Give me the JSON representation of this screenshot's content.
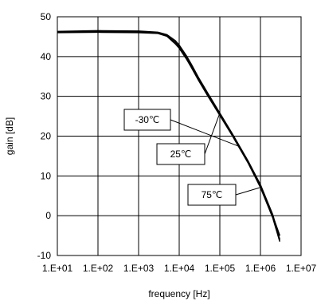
{
  "chart_data": {
    "type": "line",
    "xlabel": "frequency [Hz]",
    "ylabel": "gain [dB]",
    "xscale": "log",
    "xlim": [
      10,
      10000000
    ],
    "ylim": [
      -10,
      50
    ],
    "grid": true,
    "x_tick_labels": [
      "1.E+01",
      "1.E+02",
      "1.E+03",
      "1.E+04",
      "1.E+05",
      "1.E+06",
      "1.E+07"
    ],
    "y_tick_labels": [
      "-10",
      "0",
      "10",
      "20",
      "30",
      "40",
      "50"
    ],
    "series": [
      {
        "name": "-30℃",
        "x": [
          10,
          100,
          1000,
          3000,
          5000,
          8000,
          10000,
          15000,
          20000,
          30000,
          50000,
          100000,
          200000,
          500000,
          1000000,
          2000000,
          3000000
        ],
        "y": [
          46.2,
          46.3,
          46.2,
          46.0,
          45.3,
          43.6,
          42.5,
          39.8,
          37.6,
          34.4,
          30.6,
          25.5,
          20.5,
          13.5,
          7.5,
          0,
          -5
        ]
      },
      {
        "name": "25℃",
        "x": [
          10,
          100,
          1000,
          3000,
          5000,
          8000,
          10000,
          15000,
          20000,
          30000,
          50000,
          100000,
          200000,
          500000,
          1000000,
          2000000,
          3000000
        ],
        "y": [
          46.3,
          46.5,
          46.4,
          46.1,
          45.5,
          44.0,
          42.9,
          40.2,
          38.0,
          34.7,
          30.9,
          25.8,
          20.7,
          13.7,
          7.8,
          0.3,
          -6
        ]
      },
      {
        "name": "75℃",
        "x": [
          10,
          100,
          1000,
          3000,
          5000,
          8000,
          10000,
          15000,
          20000,
          30000,
          50000,
          100000,
          200000,
          500000,
          1000000,
          2000000,
          3000000
        ],
        "y": [
          46.0,
          46.1,
          46.0,
          45.8,
          45.1,
          43.2,
          42.1,
          39.4,
          37.2,
          34.0,
          30.2,
          25.2,
          20.2,
          13.2,
          7.1,
          -0.5,
          -6.5
        ]
      }
    ],
    "annotations": [
      {
        "text": "-30℃",
        "x": 300000
      },
      {
        "text": "25℃",
        "x": 100000
      },
      {
        "text": "75℃",
        "x": 1000000
      }
    ]
  }
}
